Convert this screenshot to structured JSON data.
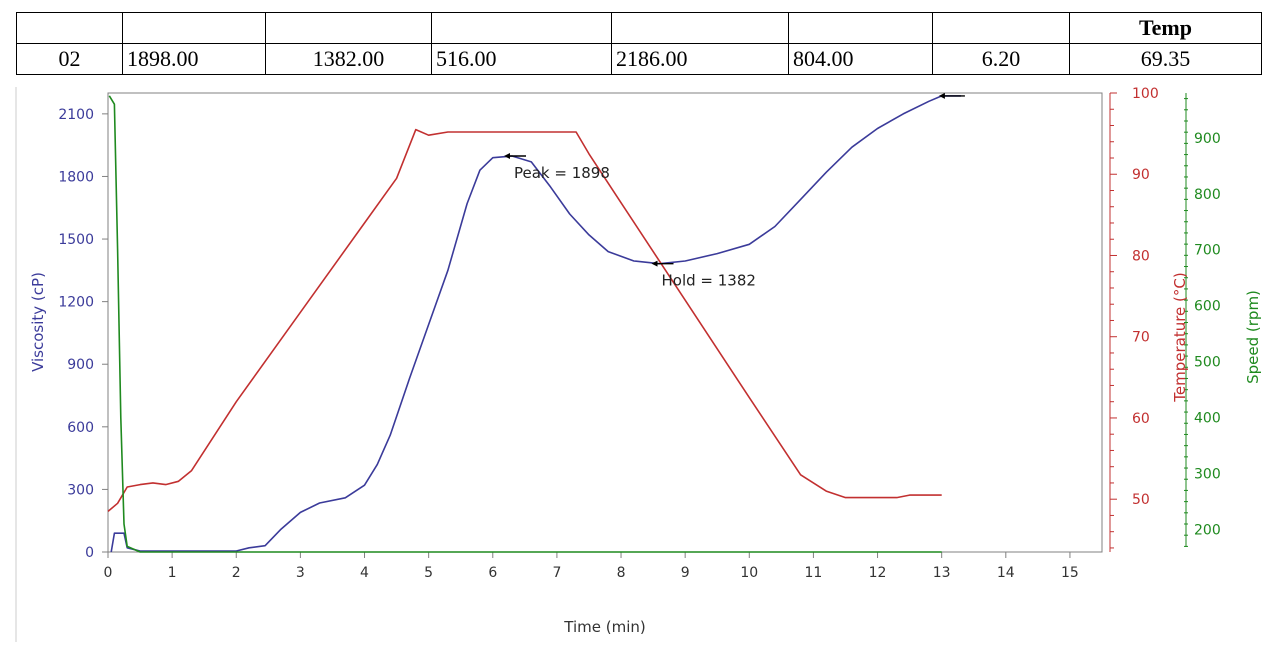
{
  "table": {
    "header": [
      "",
      "",
      "",
      "",
      "",
      "",
      "",
      "Temp"
    ],
    "row": [
      "02",
      "1898.00",
      "1382.00",
      "516.00",
      "2186.00",
      "804.00",
      "6.20",
      "69.35"
    ]
  },
  "chart_data": {
    "type": "line",
    "xlabel": "Time (min)",
    "ylabel_left": "Viscosity (cP)",
    "ylabel_right_temp": "Temperature (°C)",
    "ylabel_right_speed": "Speed (rpm)",
    "x_ticks": [
      0,
      1,
      2,
      3,
      4,
      5,
      6,
      7,
      8,
      9,
      10,
      11,
      12,
      13,
      14,
      15
    ],
    "xlim": [
      0,
      15.5
    ],
    "viscosity_ticks": [
      0,
      300,
      600,
      900,
      1200,
      1500,
      1800,
      2100
    ],
    "viscosity_lim": [
      0,
      2200
    ],
    "temperature_ticks": [
      50,
      60,
      70,
      80,
      90,
      100
    ],
    "temperature_lim": [
      43.5,
      100
    ],
    "speed_ticks": [
      200,
      300,
      400,
      500,
      600,
      700,
      800,
      900
    ],
    "speed_lim": [
      160,
      980
    ],
    "colors": {
      "viscosity": "#3b3b9a",
      "temperature": "#c23030",
      "speed": "#1f8a1f",
      "axis": "#808080"
    },
    "series": [
      {
        "key": "viscosity",
        "axis": "viscosity",
        "points": [
          [
            0.05,
            0
          ],
          [
            0.1,
            90
          ],
          [
            0.25,
            90
          ],
          [
            0.3,
            20
          ],
          [
            0.5,
            5
          ],
          [
            2.0,
            5
          ],
          [
            2.2,
            20
          ],
          [
            2.45,
            30
          ],
          [
            2.7,
            110
          ],
          [
            3.0,
            190
          ],
          [
            3.3,
            235
          ],
          [
            3.7,
            260
          ],
          [
            4.0,
            320
          ],
          [
            4.2,
            420
          ],
          [
            4.4,
            560
          ],
          [
            4.7,
            830
          ],
          [
            5.0,
            1090
          ],
          [
            5.3,
            1350
          ],
          [
            5.6,
            1670
          ],
          [
            5.8,
            1830
          ],
          [
            6.0,
            1890
          ],
          [
            6.3,
            1898
          ],
          [
            6.6,
            1870
          ],
          [
            6.9,
            1750
          ],
          [
            7.2,
            1620
          ],
          [
            7.5,
            1520
          ],
          [
            7.8,
            1440
          ],
          [
            8.2,
            1395
          ],
          [
            8.6,
            1382
          ],
          [
            9.0,
            1395
          ],
          [
            9.5,
            1430
          ],
          [
            10.0,
            1475
          ],
          [
            10.4,
            1560
          ],
          [
            10.8,
            1690
          ],
          [
            11.2,
            1820
          ],
          [
            11.6,
            1940
          ],
          [
            12.0,
            2030
          ],
          [
            12.4,
            2100
          ],
          [
            12.8,
            2160
          ],
          [
            13.0,
            2186
          ],
          [
            13.3,
            2186
          ]
        ]
      },
      {
        "key": "temperature",
        "axis": "temperature",
        "points": [
          [
            0.0,
            48.5
          ],
          [
            0.15,
            49.5
          ],
          [
            0.3,
            51.5
          ],
          [
            0.5,
            51.8
          ],
          [
            0.7,
            52.0
          ],
          [
            0.9,
            51.8
          ],
          [
            1.1,
            52.2
          ],
          [
            1.3,
            53.5
          ],
          [
            2.0,
            62
          ],
          [
            3.0,
            73
          ],
          [
            4.0,
            84
          ],
          [
            4.5,
            89.5
          ],
          [
            4.8,
            95.5
          ],
          [
            5.0,
            94.8
          ],
          [
            5.3,
            95.2
          ],
          [
            6.0,
            95.2
          ],
          [
            7.0,
            95.2
          ],
          [
            7.3,
            95.2
          ],
          [
            7.5,
            92.5
          ],
          [
            8.0,
            86.5
          ],
          [
            9.0,
            74.5
          ],
          [
            10.0,
            62.5
          ],
          [
            10.8,
            53
          ],
          [
            11.2,
            51
          ],
          [
            11.5,
            50.2
          ],
          [
            12.0,
            50.2
          ],
          [
            12.3,
            50.2
          ],
          [
            12.5,
            50.5
          ],
          [
            13.0,
            50.5
          ]
        ]
      },
      {
        "key": "speed",
        "axis": "speed",
        "points": [
          [
            0.02,
            975
          ],
          [
            0.1,
            960
          ],
          [
            0.15,
            700
          ],
          [
            0.2,
            400
          ],
          [
            0.25,
            210
          ],
          [
            0.3,
            170
          ],
          [
            0.5,
            160
          ],
          [
            13.0,
            160
          ]
        ]
      }
    ],
    "annotations": [
      {
        "text": "Peak = 1898",
        "x": 6.3,
        "y": 1898,
        "axis": "viscosity"
      },
      {
        "text": "Hold = 1382",
        "x": 8.6,
        "y": 1382,
        "axis": "viscosity"
      }
    ],
    "end_marker": {
      "x": 13.3,
      "y": 2186,
      "axis": "viscosity"
    }
  }
}
